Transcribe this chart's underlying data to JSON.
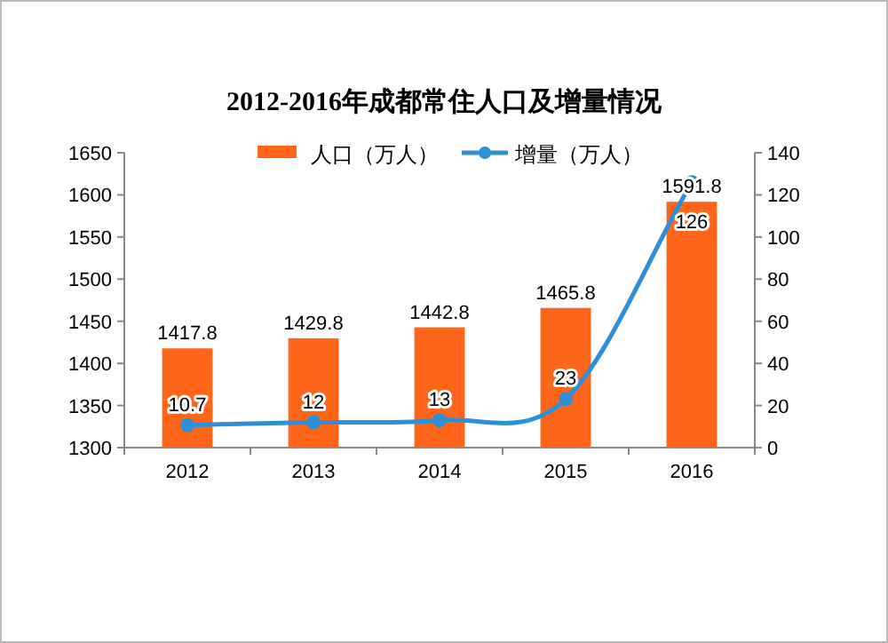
{
  "chart_data": {
    "type": "bar",
    "title": "2012-2016年成都常住人口及增量情况",
    "categories": [
      "2012",
      "2013",
      "2014",
      "2015",
      "2016"
    ],
    "series": [
      {
        "name": "人口（万人）",
        "color": "#ff6519",
        "values": [
          1417.8,
          1429.8,
          1442.8,
          1465.8,
          1591.8
        ]
      },
      {
        "name": "增量（万人）",
        "type": "line",
        "axis": "y2",
        "color": "#2e8fd8",
        "values": [
          10.7,
          12,
          13,
          23,
          126
        ]
      }
    ],
    "ylim": [
      1300,
      1650
    ],
    "yticks": [
      1300,
      1350,
      1400,
      1450,
      1500,
      1550,
      1600,
      1650
    ],
    "y2lim": [
      0,
      140
    ],
    "y2ticks": [
      0,
      20,
      40,
      60,
      80,
      100,
      120,
      140
    ],
    "data_labels": true,
    "legend": "top",
    "marker": "circle",
    "grid": false
  }
}
